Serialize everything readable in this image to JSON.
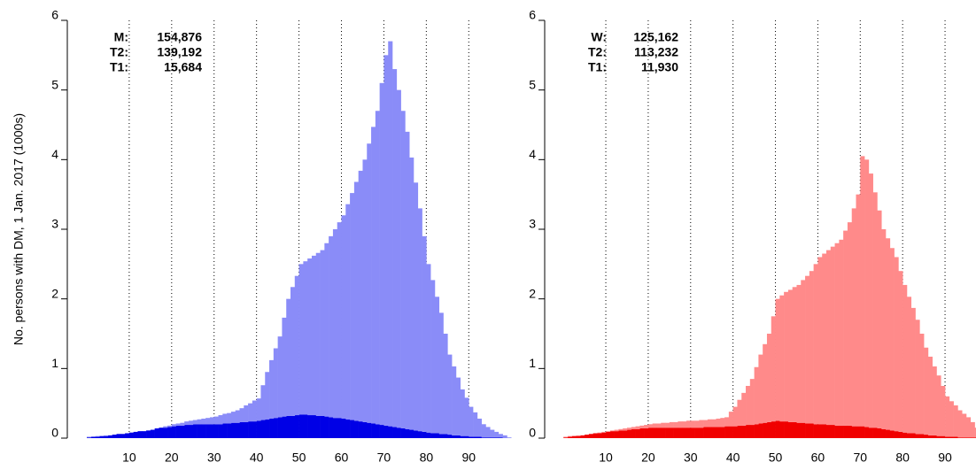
{
  "chart_data": [
    {
      "type": "histogram",
      "ylabel": "No. persons with DM, 1 Jan. 2017 (1000s)",
      "bins": [
        0,
        1,
        2,
        3,
        4,
        5,
        6,
        7,
        8,
        9,
        10,
        11,
        12,
        13,
        14,
        15,
        16,
        17,
        18,
        19,
        20,
        21,
        22,
        23,
        24,
        25,
        26,
        27,
        28,
        29,
        30,
        31,
        32,
        33,
        34,
        35,
        36,
        37,
        38,
        39,
        40,
        41,
        42,
        43,
        44,
        45,
        46,
        47,
        48,
        49,
        50,
        51,
        52,
        53,
        54,
        55,
        56,
        57,
        58,
        59,
        60,
        61,
        62,
        63,
        64,
        65,
        66,
        67,
        68,
        69,
        70,
        71,
        72,
        73,
        74,
        75,
        76,
        77,
        78,
        79,
        80,
        81,
        82,
        83,
        84,
        85,
        86,
        87,
        88,
        89,
        90,
        91,
        92,
        93,
        94,
        95,
        96,
        97,
        98,
        99,
        100
      ],
      "total": {
        "name": "M:",
        "value_label": "154,876",
        "color": "#555555"
      },
      "series": [
        {
          "name": "T1:",
          "value_label": "15,684",
          "color": "#0000e6",
          "values": [
            0.01,
            0.02,
            0.02,
            0.03,
            0.03,
            0.04,
            0.05,
            0.06,
            0.06,
            0.07,
            0.08,
            0.09,
            0.1,
            0.1,
            0.11,
            0.12,
            0.14,
            0.15,
            0.15,
            0.16,
            0.17,
            0.18,
            0.18,
            0.19,
            0.19,
            0.2,
            0.2,
            0.2,
            0.2,
            0.2,
            0.2,
            0.2,
            0.21,
            0.21,
            0.22,
            0.22,
            0.23,
            0.23,
            0.24,
            0.24,
            0.25,
            0.26,
            0.27,
            0.28,
            0.29,
            0.3,
            0.31,
            0.32,
            0.32,
            0.33,
            0.34,
            0.34,
            0.33,
            0.33,
            0.32,
            0.32,
            0.31,
            0.3,
            0.29,
            0.29,
            0.28,
            0.27,
            0.26,
            0.25,
            0.24,
            0.23,
            0.22,
            0.21,
            0.2,
            0.19,
            0.18,
            0.17,
            0.16,
            0.15,
            0.14,
            0.13,
            0.12,
            0.11,
            0.1,
            0.09,
            0.08,
            0.07,
            0.07,
            0.06,
            0.06,
            0.05,
            0.04,
            0.04,
            0.03,
            0.03,
            0.02,
            0.02,
            0.02,
            0.01,
            0.01,
            0.01,
            0.01,
            0.01,
            0,
            0
          ]
        },
        {
          "name": "T2:",
          "value_label": "139,192",
          "color": "#8a8cf8",
          "values": [
            0.01,
            0,
            0.01,
            0,
            0.01,
            0,
            0,
            0,
            0,
            0,
            0,
            0,
            0,
            0,
            0,
            0,
            0,
            0,
            0.02,
            0.02,
            0.03,
            0.03,
            0.04,
            0.05,
            0.06,
            0.06,
            0.07,
            0.08,
            0.09,
            0.1,
            0.11,
            0.13,
            0.14,
            0.15,
            0.16,
            0.18,
            0.2,
            0.24,
            0.26,
            0.3,
            0.32,
            0.5,
            0.68,
            0.84,
            1.0,
            1.16,
            1.42,
            1.68,
            1.85,
            2.0,
            2.16,
            2.2,
            2.25,
            2.29,
            2.34,
            2.38,
            2.49,
            2.6,
            2.71,
            2.81,
            2.92,
            3.09,
            3.26,
            3.43,
            3.6,
            3.77,
            4.01,
            4.26,
            4.5,
            4.91,
            5.32,
            5.53,
            5.14,
            4.85,
            4.56,
            4.27,
            3.91,
            3.56,
            3.2,
            2.81,
            2.42,
            2.2,
            1.96,
            1.74,
            1.44,
            1.15,
            0.99,
            0.83,
            0.67,
            0.55,
            0.43,
            0.35,
            0.26,
            0.19,
            0.15,
            0.11,
            0.08,
            0.05,
            0.04,
            0.01
          ]
        }
      ],
      "xlim": [
        -5,
        101
      ],
      "xticks": [
        10,
        20,
        30,
        40,
        50,
        60,
        70,
        80,
        90
      ],
      "ylim": [
        0,
        6
      ],
      "yticks": [
        0,
        1,
        2,
        3,
        4,
        5,
        6
      ],
      "grid": true
    },
    {
      "type": "histogram",
      "bins": [
        0,
        1,
        2,
        3,
        4,
        5,
        6,
        7,
        8,
        9,
        10,
        11,
        12,
        13,
        14,
        15,
        16,
        17,
        18,
        19,
        20,
        21,
        22,
        23,
        24,
        25,
        26,
        27,
        28,
        29,
        30,
        31,
        32,
        33,
        34,
        35,
        36,
        37,
        38,
        39,
        40,
        41,
        42,
        43,
        44,
        45,
        46,
        47,
        48,
        49,
        50,
        51,
        52,
        53,
        54,
        55,
        56,
        57,
        58,
        59,
        60,
        61,
        62,
        63,
        64,
        65,
        66,
        67,
        68,
        69,
        70,
        71,
        72,
        73,
        74,
        75,
        76,
        77,
        78,
        79,
        80,
        81,
        82,
        83,
        84,
        85,
        86,
        87,
        88,
        89,
        90,
        91,
        92,
        93,
        94,
        95,
        96,
        97,
        98,
        99,
        100
      ],
      "total": {
        "name": "W:",
        "value_label": "125,162",
        "color": "#555555"
      },
      "series": [
        {
          "name": "T1:",
          "value_label": "11,930",
          "color": "#f00000",
          "values": [
            0.01,
            0.02,
            0.03,
            0.03,
            0.04,
            0.05,
            0.06,
            0.07,
            0.07,
            0.08,
            0.09,
            0.1,
            0.1,
            0.11,
            0.11,
            0.12,
            0.13,
            0.13,
            0.14,
            0.14,
            0.15,
            0.15,
            0.15,
            0.15,
            0.15,
            0.15,
            0.15,
            0.15,
            0.15,
            0.15,
            0.15,
            0.15,
            0.15,
            0.16,
            0.16,
            0.16,
            0.16,
            0.16,
            0.17,
            0.17,
            0.17,
            0.18,
            0.18,
            0.19,
            0.19,
            0.2,
            0.21,
            0.22,
            0.23,
            0.24,
            0.25,
            0.24,
            0.24,
            0.23,
            0.23,
            0.22,
            0.22,
            0.21,
            0.21,
            0.2,
            0.2,
            0.2,
            0.19,
            0.19,
            0.18,
            0.18,
            0.18,
            0.18,
            0.17,
            0.17,
            0.17,
            0.16,
            0.15,
            0.15,
            0.14,
            0.13,
            0.12,
            0.11,
            0.1,
            0.09,
            0.08,
            0.07,
            0.07,
            0.06,
            0.06,
            0.05,
            0.04,
            0.04,
            0.03,
            0.03,
            0.02,
            0.02,
            0.02,
            0.01,
            0.01,
            0.01,
            0.01,
            0.01,
            0,
            0
          ]
        },
        {
          "name": "T2:",
          "value_label": "113,232",
          "color": "#ff8a8a",
          "values": [
            0.01,
            0.01,
            0,
            0.01,
            0,
            0,
            0,
            0,
            0.01,
            0.01,
            0.01,
            0.01,
            0.02,
            0.02,
            0.03,
            0.03,
            0.03,
            0.04,
            0.04,
            0.05,
            0.05,
            0.06,
            0.06,
            0.07,
            0.07,
            0.08,
            0.08,
            0.09,
            0.09,
            0.1,
            0.1,
            0.1,
            0.11,
            0.1,
            0.11,
            0.11,
            0.12,
            0.13,
            0.13,
            0.21,
            0.28,
            0.37,
            0.47,
            0.56,
            0.66,
            0.82,
            0.99,
            1.13,
            1.27,
            1.51,
            1.75,
            1.81,
            1.86,
            1.9,
            1.94,
            1.98,
            2.05,
            2.12,
            2.19,
            2.3,
            2.4,
            2.45,
            2.51,
            2.56,
            2.62,
            2.67,
            2.8,
            2.92,
            3.13,
            3.33,
            3.88,
            3.84,
            3.65,
            3.38,
            3.13,
            2.87,
            2.75,
            2.62,
            2.5,
            2.31,
            2.12,
            1.96,
            1.8,
            1.64,
            1.44,
            1.25,
            1.13,
            0.99,
            0.87,
            0.72,
            0.58,
            0.51,
            0.45,
            0.39,
            0.34,
            0.29,
            0.22,
            0.14,
            0.12,
            0.08
          ]
        }
      ],
      "xlim": [
        -4,
        97.3
      ],
      "xticks": [
        10,
        20,
        30,
        40,
        50,
        60,
        70,
        80,
        90
      ],
      "ylim": [
        0,
        6
      ],
      "yticks": [
        0,
        1,
        2,
        3,
        4,
        5,
        6
      ],
      "grid": true
    }
  ]
}
